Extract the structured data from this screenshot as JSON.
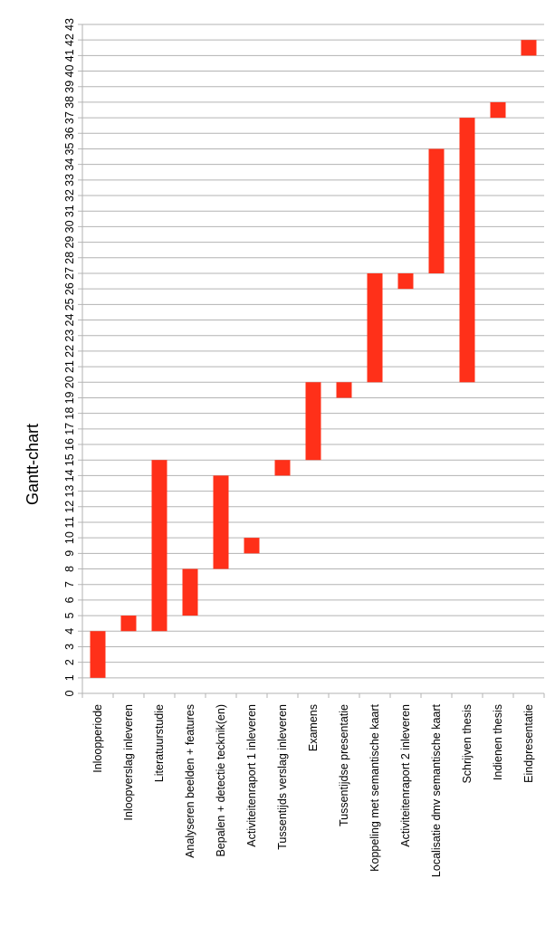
{
  "chart_data": {
    "type": "bar",
    "orientation": "vertical-floating",
    "title": "Gantt-chart",
    "xlabel": "",
    "ylabel": "",
    "ylim": [
      0,
      43
    ],
    "yticks": [
      "0",
      "1",
      "2",
      "3",
      "4",
      "5",
      "6",
      "7",
      "8",
      "9",
      "10",
      "11",
      "12",
      "13",
      "14",
      "15",
      "16",
      "17",
      "18",
      "19",
      "20",
      "21",
      "22",
      "23",
      "24",
      "25",
      "26",
      "27",
      "28",
      "29",
      "30",
      "31",
      "32",
      "33",
      "34",
      "35",
      "36",
      "37",
      "38",
      "39",
      "40",
      "41",
      "42",
      "43"
    ],
    "grid": true,
    "legend": "none",
    "bar_color": "#ff3019",
    "categories": [
      "Inloopperiode",
      "Inloopverslag inleveren",
      "Literatuurstudie",
      "Analyseren beelden + features",
      "Bepalen +  detectie tecknik(en)",
      "Activiteitenraport 1 inleveren",
      "Tussentijds verslag inleveren",
      "Examens",
      "Tussentijdse presentatie",
      "Koppeling met semantische kaart",
      "Activiteitenraport 2 inleveren",
      "Localisatie dmv semantische kaart",
      "Schrijven thesis",
      "Indienen thesis",
      "Eindpresentatie"
    ],
    "start": [
      1,
      4,
      4,
      5,
      8,
      9,
      14,
      15,
      19,
      20,
      26,
      27,
      20,
      37,
      41
    ],
    "end": [
      4,
      5,
      15,
      8,
      14,
      10,
      15,
      20,
      20,
      27,
      27,
      35,
      37,
      38,
      42
    ]
  }
}
